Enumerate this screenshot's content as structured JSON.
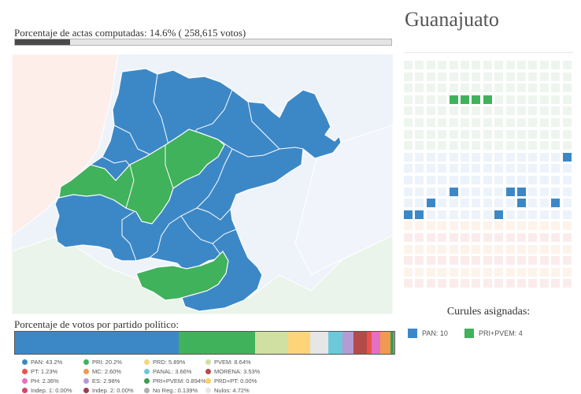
{
  "progress": {
    "label": "Porcentaje de actas computadas: 14.6% ( 258,615 votos)",
    "fraction": 0.146
  },
  "colors": {
    "pan": "#3c88c7",
    "pri": "#40b25c",
    "map_background": "#eef3fa"
  },
  "votes": {
    "title": "Porcentaje de votos por partido político:",
    "parties": [
      {
        "label": "PAN: 43.2%",
        "pct": 43.2,
        "color": "#3c88c7"
      },
      {
        "label": "PRI: 20.2%",
        "pct": 20.2,
        "color": "#40b25c"
      },
      {
        "label": "PRD: 5.89%",
        "pct": 5.89,
        "color": "#fdd47a"
      },
      {
        "label": "PVEM: 8.64%",
        "pct": 8.64,
        "color": "#cfe0a2"
      },
      {
        "label": "PT: 1.23%",
        "pct": 1.23,
        "color": "#e8534d"
      },
      {
        "label": "MC: 2.60%",
        "pct": 2.6,
        "color": "#f09950"
      },
      {
        "label": "PANAL: 3.66%",
        "pct": 3.66,
        "color": "#6cc9d9"
      },
      {
        "label": "MORENA: 3.53%",
        "pct": 3.53,
        "color": "#b34b4b"
      },
      {
        "label": "PH: 2.36%",
        "pct": 2.36,
        "color": "#e56fc0"
      },
      {
        "label": "ES: 2.98%",
        "pct": 2.98,
        "color": "#b49bd4"
      },
      {
        "label": "PRI+PVEM: 0.894%",
        "pct": 0.894,
        "color": "#3a9e50"
      },
      {
        "label": "PRD+PT: 0.00%",
        "pct": 0.0,
        "color": "#fad06a"
      },
      {
        "label": "Indep. 1: 0.00%",
        "pct": 0.0,
        "color": "#d6456b"
      },
      {
        "label": "Indep. 2: 0.00%",
        "pct": 0.0,
        "color": "#9a4050"
      },
      {
        "label": "No Reg.: 0.139%",
        "pct": 0.139,
        "color": "#b0b0b0"
      },
      {
        "label": "Nulos: 4.72%",
        "pct": 4.72,
        "color": "#e6e6e6"
      }
    ],
    "bar_order": [
      0,
      1,
      3,
      2,
      15,
      6,
      9,
      7,
      4,
      8,
      5,
      10,
      14
    ]
  },
  "state": {
    "name": "Guanajuato"
  },
  "seats": {
    "title": "Curules asignadas:",
    "legend": [
      {
        "label": "PAN: 10",
        "color": "#3c88c7"
      },
      {
        "label": "PRI+PVEM: 4",
        "color": "#40b25c"
      }
    ],
    "filled": [
      {
        "row": 3,
        "col": 4,
        "party": "pri"
      },
      {
        "row": 3,
        "col": 5,
        "party": "pri"
      },
      {
        "row": 3,
        "col": 6,
        "party": "pri"
      },
      {
        "row": 3,
        "col": 7,
        "party": "pri"
      },
      {
        "row": 8,
        "col": 14,
        "party": "pan"
      },
      {
        "row": 11,
        "col": 4,
        "party": "pan"
      },
      {
        "row": 11,
        "col": 9,
        "party": "pan"
      },
      {
        "row": 11,
        "col": 10,
        "party": "pan"
      },
      {
        "row": 12,
        "col": 2,
        "party": "pan"
      },
      {
        "row": 12,
        "col": 10,
        "party": "pan"
      },
      {
        "row": 12,
        "col": 13,
        "party": "pan"
      },
      {
        "row": 13,
        "col": 0,
        "party": "pan"
      },
      {
        "row": 13,
        "col": 1,
        "party": "pan"
      },
      {
        "row": 13,
        "col": 8,
        "party": "pan"
      }
    ]
  }
}
